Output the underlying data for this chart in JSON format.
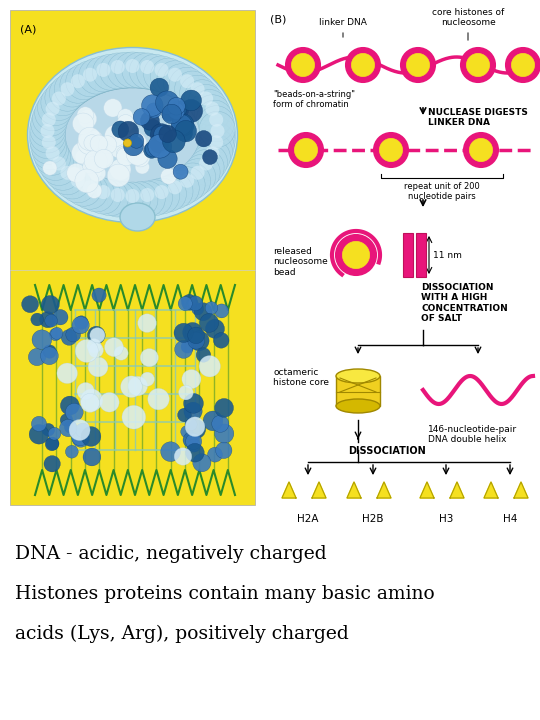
{
  "bg_color": "#ffffff",
  "yellow": "#f5e020",
  "pink": "#e8157a",
  "fig_width": 5.4,
  "fig_height": 7.2,
  "text_line1": "DNA - acidic, negatively charged",
  "text_line2": "Histones proteins contain many basic amino",
  "text_line3": "acids (Lys, Arg), positively charged",
  "text_fontsize": 13.5
}
